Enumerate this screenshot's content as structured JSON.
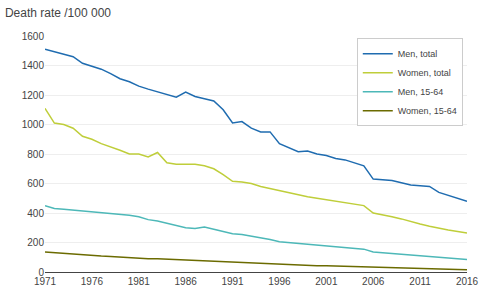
{
  "chart_data": {
    "type": "line",
    "title": "Death rate /100 000",
    "x": [
      1971,
      1972,
      1973,
      1974,
      1975,
      1976,
      1977,
      1978,
      1979,
      1980,
      1981,
      1982,
      1983,
      1984,
      1985,
      1986,
      1987,
      1988,
      1989,
      1990,
      1991,
      1992,
      1993,
      1994,
      1995,
      1996,
      1997,
      1998,
      1999,
      2000,
      2001,
      2002,
      2003,
      2004,
      2005,
      2006,
      2007,
      2008,
      2009,
      2010,
      2011,
      2012,
      2013,
      2014,
      2015,
      2016
    ],
    "series": [
      {
        "name": "Men, total",
        "color": "#1F6CB0",
        "values": [
          1510,
          1495,
          1480,
          1460,
          1415,
          1395,
          1375,
          1345,
          1310,
          1290,
          1260,
          1240,
          1220,
          1200,
          1185,
          1220,
          1190,
          1175,
          1160,
          1100,
          1010,
          1020,
          975,
          950,
          950,
          870,
          845,
          815,
          820,
          800,
          790,
          770,
          760,
          740,
          720,
          630,
          625,
          620,
          605,
          590,
          585,
          580,
          540,
          520,
          500,
          480
        ]
      },
      {
        "name": "Women, total",
        "color": "#BFCE3A",
        "values": [
          1110,
          1010,
          1000,
          975,
          920,
          900,
          870,
          850,
          825,
          800,
          800,
          780,
          810,
          740,
          730,
          730,
          730,
          720,
          700,
          660,
          615,
          610,
          600,
          580,
          565,
          555,
          540,
          520,
          510,
          500,
          490,
          480,
          465,
          460,
          450,
          400,
          390,
          375,
          360,
          340,
          325,
          310,
          295,
          285,
          275,
          265
        ]
      },
      {
        "name": "Men, 15-64",
        "color": "#4DB8B8",
        "values": [
          450,
          430,
          425,
          420,
          415,
          410,
          405,
          395,
          390,
          385,
          375,
          355,
          345,
          330,
          310,
          300,
          295,
          305,
          290,
          275,
          260,
          255,
          245,
          230,
          220,
          205,
          200,
          195,
          190,
          180,
          175,
          170,
          165,
          160,
          155,
          135,
          130,
          128,
          120,
          115,
          110,
          105,
          100,
          95,
          90,
          85
        ]
      },
      {
        "name": "Women, 15-64",
        "color": "#6B6B00",
        "values": [
          135,
          130,
          125,
          120,
          115,
          110,
          108,
          105,
          100,
          98,
          95,
          90,
          90,
          87,
          85,
          83,
          80,
          78,
          75,
          70,
          67,
          65,
          60,
          57,
          55,
          52,
          50,
          48,
          45,
          43,
          42,
          40,
          38,
          36,
          34,
          30,
          28,
          27,
          26,
          25,
          24,
          22,
          20,
          18,
          17,
          16
        ]
      }
    ],
    "xlim": [
      1971,
      2016
    ],
    "xticks": [
      1971,
      1976,
      1981,
      1986,
      1991,
      1996,
      2001,
      2006,
      2011,
      2016
    ],
    "ylim": [
      0,
      1600
    ],
    "yticks": [
      0,
      200,
      400,
      600,
      800,
      1000,
      1200,
      1400,
      1600
    ],
    "grid": "y",
    "legend": "upper right"
  }
}
